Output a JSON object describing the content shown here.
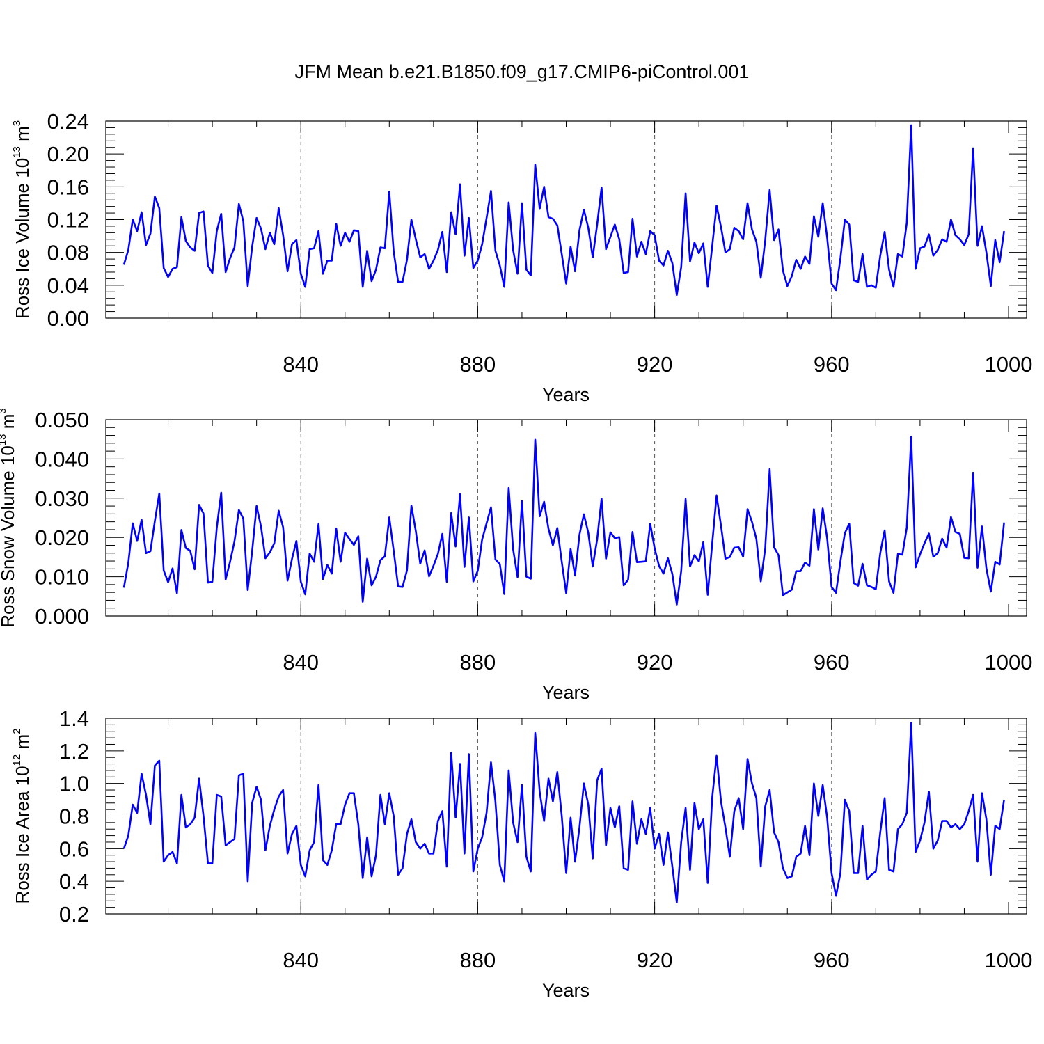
{
  "title": "JFM Mean b.e21.B1850.f09_g17.CMIP6-piControl.001",
  "colors": {
    "series": "#0000ff",
    "axis": "#000000",
    "grid": "#555555"
  },
  "chart_data": [
    {
      "type": "line",
      "ylabel_main": "Ross Ice Volume 10",
      "ylabel_sup": "13",
      "ylabel_unit": " m",
      "ylabel_unit_sup": "3",
      "xlabel": "Years",
      "xlim": [
        800,
        1000
      ],
      "ylim": [
        0.0,
        0.24
      ],
      "yticks": [
        0.0,
        0.04,
        0.08,
        0.12,
        0.16,
        0.2,
        0.24
      ],
      "ytick_labels": [
        "0.00",
        "0.04",
        "0.08",
        "0.12",
        "0.16",
        "0.20",
        "0.24"
      ],
      "xticks": [
        840,
        880,
        920,
        960,
        1000
      ],
      "xtick_labels": [
        "840",
        "880",
        "920",
        "960",
        "1000"
      ],
      "x_start": 800,
      "values": [
        0.065,
        0.083,
        0.12,
        0.106,
        0.129,
        0.089,
        0.103,
        0.148,
        0.134,
        0.061,
        0.05,
        0.06,
        0.062,
        0.123,
        0.094,
        0.086,
        0.082,
        0.128,
        0.13,
        0.064,
        0.055,
        0.106,
        0.127,
        0.056,
        0.073,
        0.086,
        0.139,
        0.118,
        0.039,
        0.087,
        0.122,
        0.109,
        0.084,
        0.104,
        0.09,
        0.134,
        0.101,
        0.057,
        0.09,
        0.095,
        0.054,
        0.038,
        0.084,
        0.085,
        0.106,
        0.054,
        0.07,
        0.07,
        0.115,
        0.088,
        0.104,
        0.093,
        0.107,
        0.106,
        0.038,
        0.082,
        0.045,
        0.059,
        0.086,
        0.085,
        0.154,
        0.081,
        0.044,
        0.044,
        0.071,
        0.12,
        0.096,
        0.074,
        0.078,
        0.06,
        0.07,
        0.083,
        0.105,
        0.056,
        0.129,
        0.102,
        0.163,
        0.076,
        0.122,
        0.061,
        0.07,
        0.09,
        0.122,
        0.155,
        0.082,
        0.064,
        0.038,
        0.141,
        0.083,
        0.054,
        0.14,
        0.059,
        0.052,
        0.187,
        0.133,
        0.16,
        0.123,
        0.121,
        0.113,
        0.078,
        0.042,
        0.087,
        0.057,
        0.107,
        0.132,
        0.11,
        0.074,
        0.114,
        0.159,
        0.084,
        0.099,
        0.114,
        0.096,
        0.055,
        0.056,
        0.121,
        0.075,
        0.093,
        0.078,
        0.106,
        0.101,
        0.07,
        0.064,
        0.082,
        0.067,
        0.028,
        0.062,
        0.152,
        0.069,
        0.092,
        0.079,
        0.091,
        0.038,
        0.087,
        0.137,
        0.111,
        0.08,
        0.084,
        0.11,
        0.106,
        0.096,
        0.14,
        0.108,
        0.093,
        0.049,
        0.095,
        0.156,
        0.095,
        0.108,
        0.058,
        0.039,
        0.051,
        0.071,
        0.06,
        0.075,
        0.066,
        0.124,
        0.099,
        0.14,
        0.098,
        0.042,
        0.034,
        0.073,
        0.12,
        0.114,
        0.046,
        0.044,
        0.078,
        0.038,
        0.04,
        0.037,
        0.076,
        0.105,
        0.059,
        0.038,
        0.078,
        0.075,
        0.116,
        0.235,
        0.06,
        0.085,
        0.087,
        0.102,
        0.076,
        0.083,
        0.096,
        0.093,
        0.12,
        0.101,
        0.096,
        0.089,
        0.102,
        0.207,
        0.088,
        0.112,
        0.08,
        0.039,
        0.095,
        0.068,
        0.106
      ]
    },
    {
      "type": "line",
      "ylabel_main": "Ross Snow Volume 10",
      "ylabel_sup": "13",
      "ylabel_unit": " m",
      "ylabel_unit_sup": "3",
      "xlabel": "Years",
      "xlim": [
        800,
        1000
      ],
      "ylim": [
        0.0,
        0.05
      ],
      "yticks": [
        0.0,
        0.01,
        0.02,
        0.03,
        0.04,
        0.05
      ],
      "ytick_labels": [
        "0.000",
        "0.010",
        "0.020",
        "0.030",
        "0.040",
        "0.050"
      ],
      "xticks": [
        840,
        880,
        920,
        960,
        1000
      ],
      "xtick_labels": [
        "840",
        "880",
        "920",
        "960",
        "1000"
      ],
      "x_start": 800,
      "values": [
        0.0072,
        0.0135,
        0.0236,
        0.0191,
        0.0245,
        0.016,
        0.0165,
        0.0242,
        0.0312,
        0.0116,
        0.0086,
        0.0121,
        0.0058,
        0.0219,
        0.0173,
        0.0166,
        0.0119,
        0.0283,
        0.0261,
        0.0085,
        0.0087,
        0.0225,
        0.0314,
        0.0093,
        0.0138,
        0.019,
        0.027,
        0.0248,
        0.0066,
        0.0165,
        0.028,
        0.0228,
        0.0147,
        0.0162,
        0.0185,
        0.0268,
        0.0226,
        0.009,
        0.0145,
        0.0191,
        0.0087,
        0.0055,
        0.0159,
        0.0138,
        0.0234,
        0.0094,
        0.013,
        0.0108,
        0.0223,
        0.0138,
        0.0212,
        0.0196,
        0.0181,
        0.0203,
        0.0036,
        0.0146,
        0.0078,
        0.01,
        0.0142,
        0.0152,
        0.0251,
        0.0166,
        0.0075,
        0.0074,
        0.0116,
        0.0281,
        0.0216,
        0.0133,
        0.0167,
        0.0101,
        0.0128,
        0.0158,
        0.0209,
        0.0087,
        0.0262,
        0.0177,
        0.031,
        0.0125,
        0.0251,
        0.0088,
        0.0115,
        0.0195,
        0.0236,
        0.0277,
        0.0144,
        0.0132,
        0.0056,
        0.0326,
        0.017,
        0.0099,
        0.0293,
        0.01,
        0.0095,
        0.0449,
        0.0254,
        0.0291,
        0.0222,
        0.018,
        0.0224,
        0.0138,
        0.0058,
        0.0171,
        0.0103,
        0.0207,
        0.0259,
        0.0212,
        0.0126,
        0.0195,
        0.0299,
        0.0146,
        0.0213,
        0.0198,
        0.0201,
        0.0078,
        0.0092,
        0.0214,
        0.0137,
        0.0138,
        0.0139,
        0.0235,
        0.0172,
        0.0127,
        0.0108,
        0.0147,
        0.0107,
        0.0029,
        0.0114,
        0.0298,
        0.0126,
        0.0155,
        0.0139,
        0.0188,
        0.0054,
        0.0183,
        0.0307,
        0.023,
        0.0146,
        0.015,
        0.0174,
        0.0175,
        0.0151,
        0.0272,
        0.024,
        0.0196,
        0.0088,
        0.0172,
        0.0374,
        0.0175,
        0.0155,
        0.0053,
        0.006,
        0.0067,
        0.0114,
        0.0114,
        0.0136,
        0.0128,
        0.0272,
        0.0169,
        0.0274,
        0.0198,
        0.0074,
        0.0059,
        0.0139,
        0.0211,
        0.0235,
        0.0084,
        0.0077,
        0.0133,
        0.0078,
        0.0074,
        0.0068,
        0.016,
        0.0218,
        0.0088,
        0.0059,
        0.0158,
        0.0156,
        0.0225,
        0.0456,
        0.0124,
        0.0157,
        0.0185,
        0.021,
        0.0151,
        0.016,
        0.0197,
        0.0174,
        0.0252,
        0.0214,
        0.0209,
        0.0148,
        0.0147,
        0.0365,
        0.0123,
        0.0228,
        0.0121,
        0.0062,
        0.0138,
        0.0131,
        0.0238
      ]
    },
    {
      "type": "line",
      "ylabel_main": "Ross Ice Area 10",
      "ylabel_sup": "12",
      "ylabel_unit": " m",
      "ylabel_unit_sup": "2",
      "xlabel": "Years",
      "xlim": [
        800,
        1000
      ],
      "ylim": [
        0.2,
        1.4
      ],
      "yticks": [
        0.2,
        0.4,
        0.6,
        0.8,
        1.0,
        1.2,
        1.4
      ],
      "ytick_labels": [
        "0.2",
        "0.4",
        "0.6",
        "0.8",
        "1.0",
        "1.2",
        "1.4"
      ],
      "xticks": [
        840,
        880,
        920,
        960,
        1000
      ],
      "xtick_labels": [
        "840",
        "880",
        "920",
        "960",
        "1000"
      ],
      "x_start": 800,
      "values": [
        0.6,
        0.68,
        0.87,
        0.82,
        1.06,
        0.93,
        0.75,
        1.11,
        1.14,
        0.52,
        0.56,
        0.58,
        0.51,
        0.93,
        0.73,
        0.75,
        0.79,
        1.03,
        0.8,
        0.51,
        0.51,
        0.93,
        0.92,
        0.62,
        0.64,
        0.66,
        1.05,
        1.06,
        0.4,
        0.88,
        0.98,
        0.9,
        0.59,
        0.74,
        0.84,
        0.92,
        0.96,
        0.57,
        0.69,
        0.74,
        0.5,
        0.43,
        0.59,
        0.64,
        0.99,
        0.53,
        0.5,
        0.59,
        0.75,
        0.75,
        0.87,
        0.94,
        0.94,
        0.75,
        0.42,
        0.67,
        0.43,
        0.56,
        0.93,
        0.75,
        0.94,
        0.8,
        0.44,
        0.48,
        0.69,
        0.78,
        0.64,
        0.6,
        0.63,
        0.57,
        0.57,
        0.77,
        0.83,
        0.49,
        1.19,
        0.79,
        1.12,
        0.57,
        1.18,
        0.46,
        0.6,
        0.67,
        0.82,
        1.13,
        0.89,
        0.5,
        0.4,
        1.08,
        0.76,
        0.64,
        0.99,
        0.55,
        0.46,
        1.31,
        0.95,
        0.77,
        1.03,
        0.89,
        1.07,
        0.8,
        0.45,
        0.79,
        0.52,
        0.73,
        1.0,
        0.87,
        0.54,
        1.02,
        1.09,
        0.62,
        0.85,
        0.73,
        0.86,
        0.48,
        0.47,
        0.89,
        0.63,
        0.78,
        0.69,
        0.85,
        0.6,
        0.69,
        0.5,
        0.7,
        0.49,
        0.27,
        0.64,
        0.85,
        0.47,
        0.88,
        0.72,
        0.78,
        0.39,
        0.91,
        1.17,
        0.89,
        0.73,
        0.55,
        0.83,
        0.91,
        0.72,
        1.15,
        1.0,
        0.91,
        0.49,
        0.86,
        0.96,
        0.7,
        0.64,
        0.48,
        0.42,
        0.43,
        0.55,
        0.57,
        0.74,
        0.56,
        1.0,
        0.8,
        0.99,
        0.79,
        0.45,
        0.31,
        0.45,
        0.9,
        0.83,
        0.45,
        0.45,
        0.74,
        0.41,
        0.44,
        0.46,
        0.7,
        0.91,
        0.47,
        0.46,
        0.72,
        0.75,
        0.82,
        1.37,
        0.58,
        0.65,
        0.76,
        0.95,
        0.6,
        0.65,
        0.77,
        0.77,
        0.73,
        0.75,
        0.72,
        0.75,
        0.83,
        0.93,
        0.52,
        0.94,
        0.78,
        0.44,
        0.74,
        0.72,
        0.9
      ]
    }
  ]
}
